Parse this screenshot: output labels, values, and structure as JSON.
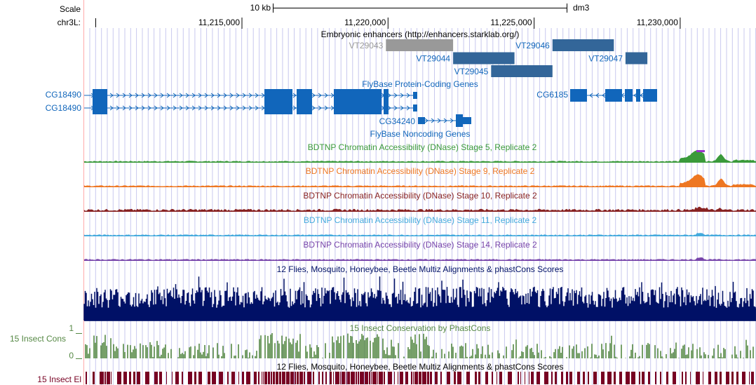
{
  "header": {
    "scale_label": "Scale",
    "chrom_label": "chr3L:",
    "scale_bar_label": "10 kb",
    "assembly": "dm3",
    "ticks": [
      {
        "label": "11,215,000",
        "pos": 11215000
      },
      {
        "label": "11,220,000",
        "pos": 11220000
      },
      {
        "label": "11,225,000",
        "pos": 11225000
      },
      {
        "label": "11,230,000",
        "pos": 11230000
      }
    ]
  },
  "enhancers": {
    "title": "Embryonic enhancers (http://enhancers.starklab.org/)",
    "items": [
      {
        "name": "VT29043",
        "start": 11220000,
        "end": 11222300,
        "color": "#999999"
      },
      {
        "name": "VT29044",
        "start": 11222300,
        "end": 11224400,
        "color": "#336699"
      },
      {
        "name": "VT29045",
        "start": 11223600,
        "end": 11225700,
        "color": "#336699"
      },
      {
        "name": "VT29046",
        "start": 11225700,
        "end": 11227800,
        "color": "#336699"
      },
      {
        "name": "VT29047",
        "start": 11228200,
        "end": 11228950,
        "color": "#336699"
      }
    ]
  },
  "protein_coding": {
    "title": "FlyBase Protein-Coding Genes",
    "genes": [
      {
        "name": "CG18490",
        "color": "#1166bb"
      },
      {
        "name": "CG18490",
        "color": "#1166bb"
      },
      {
        "name": "CG6185",
        "color": "#1166bb"
      }
    ]
  },
  "noncoding": {
    "title": "FlyBase Noncoding Genes",
    "genes": [
      {
        "name": "CG34240",
        "color": "#1166bb"
      }
    ]
  },
  "dnase_tracks": [
    {
      "title": "BDTNP Chromatin Accessibility (DNase) Stage 5, Replicate 2",
      "color": "#3a9a3a"
    },
    {
      "title": "BDTNP Chromatin Accessibility (DNase) Stage 9, Replicate 2",
      "color": "#ee7722"
    },
    {
      "title": "BDTNP Chromatin Accessibility (DNase) Stage 10, Replicate 2",
      "color": "#882222"
    },
    {
      "title": "BDTNP Chromatin Accessibility (DNase) Stage 11, Replicate 2",
      "color": "#44aadd"
    },
    {
      "title": "BDTNP Chromatin Accessibility (DNase) Stage 14, Replicate 2",
      "color": "#7744aa"
    }
  ],
  "multiz": {
    "title": "12 Flies, Mosquito, Honeybee, Beetle Multiz Alignments & phastCons Scores",
    "color": "#001166"
  },
  "insect_cons": {
    "side_label": "15 Insect Cons",
    "title": "15 Insect Conservation by PhastCons",
    "axis_max": "1",
    "axis_min": "0",
    "color": "#558844"
  },
  "insect_el": {
    "side_label": "15 Insect El",
    "title": "12 Flies, Mosquito, Honeybee, Beetle Multiz Alignments & phastCons Scores",
    "color": "#770022"
  },
  "colors": {
    "grid": "#c8c8ee",
    "sidebar_line": "#ffaaaa",
    "label_blue": "#1166bb",
    "gray_label": "#999999"
  }
}
